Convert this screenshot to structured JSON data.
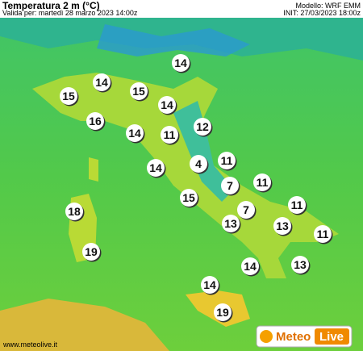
{
  "header": {
    "title": "Temperatura 2 m (°C)",
    "subtitle": "Valida per: martedì 28 marzo 2023 14:00z",
    "model": "Modello: WRF EMM",
    "init": "INIT: 27/03/2023 18:00z"
  },
  "map": {
    "labels": [
      14,
      14,
      15,
      15,
      14,
      16,
      12,
      14,
      11,
      4,
      11,
      14,
      7,
      11,
      15,
      18,
      7,
      11,
      13,
      13,
      11,
      19,
      14,
      13,
      14,
      19
    ]
  },
  "footer": {
    "url": "www.meteolive.it",
    "logo_left": "Meteo",
    "logo_right": "Live"
  }
}
